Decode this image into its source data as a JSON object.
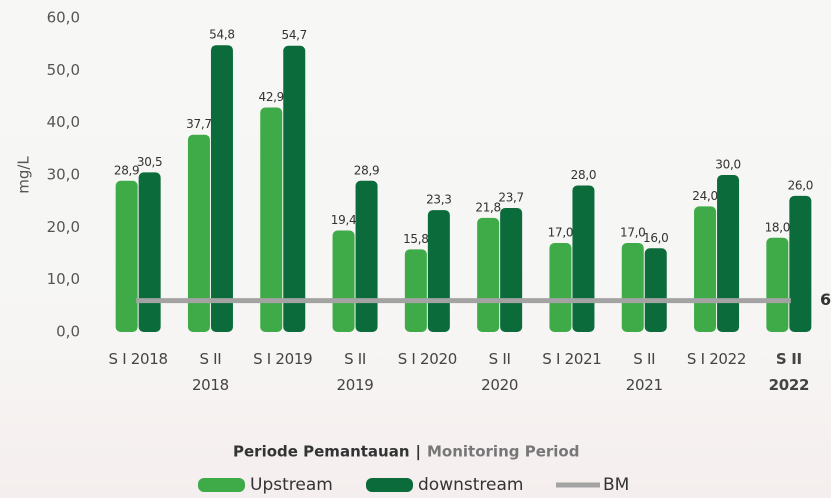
{
  "chart_data": {
    "type": "bar",
    "y_label": "mg/L",
    "x_label": "Periode Pemantauan",
    "x_label_separator": "|",
    "x_label_en": "Monitoring Period",
    "categories": [
      "S I 2018",
      "S II\n2018",
      "S I 2019",
      "S II\n2019",
      "S I 2020",
      "S II\n2020",
      "S I 2021",
      "S II\n2021",
      "S I 2022",
      "S II\n2022"
    ],
    "series": [
      {
        "name": "Upstream",
        "color": "#3fab48",
        "values": [
          28.9,
          37.7,
          42.9,
          19.4,
          15.8,
          21.8,
          17.0,
          17.0,
          24.0,
          18.0
        ],
        "value_labels": [
          "28,9",
          "37,7",
          "42,9",
          "19,4",
          "15,8",
          "21,8",
          "17,0",
          "17,0",
          "24,0",
          "18,0"
        ]
      },
      {
        "name": "downstream",
        "color": "#0b6b3a",
        "values": [
          30.5,
          54.8,
          54.7,
          28.9,
          23.3,
          23.7,
          28.0,
          16.0,
          30.0,
          26.0
        ],
        "value_labels": [
          "30,5",
          "54,8",
          "54,7",
          "28,9",
          "23,3",
          "23,7",
          "28,0",
          "16,0",
          "30,0",
          "26,0"
        ]
      }
    ],
    "reference_line": {
      "name": "BM",
      "value": 6,
      "color": "#a3a3a3"
    },
    "ylim": [
      0,
      60
    ],
    "yticks": [
      {
        "value": 0,
        "label": "0,0"
      },
      {
        "value": 10,
        "label": "10,0"
      },
      {
        "value": 20,
        "label": "20,0"
      },
      {
        "value": 30,
        "label": "30,0"
      },
      {
        "value": 40,
        "label": "40,0"
      },
      {
        "value": 50,
        "label": "50,0"
      },
      {
        "value": 60,
        "label": "60,0"
      }
    ],
    "grid": false
  }
}
